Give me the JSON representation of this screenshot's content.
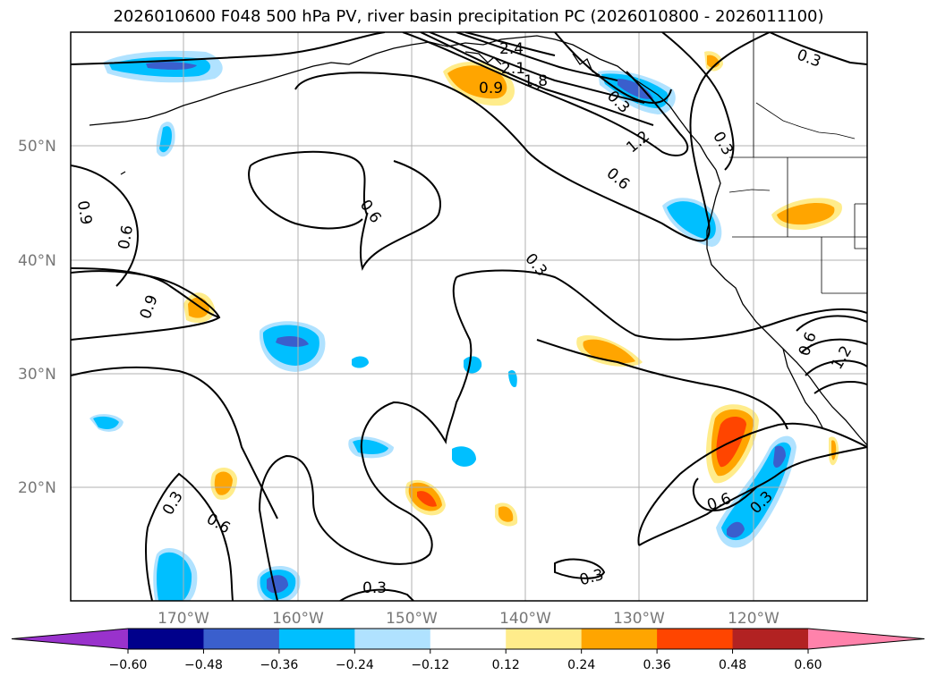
{
  "title": "2026010600 F048 500 hPa PV, river basin precipitation PC (2026010800 - 2026011100)",
  "lat_labels": [
    "50°N",
    "40°N",
    "30°N",
    "20°N"
  ],
  "lon_labels": [
    "170°W",
    "160°W",
    "150°W",
    "140°W",
    "130°W",
    "120°W"
  ],
  "contour_labels": [
    "2.4",
    "2.1",
    "1.8",
    "0.9",
    "1.2",
    "0.6",
    "0.3",
    "0.6",
    "0.9",
    "0.6",
    "0.9",
    "0.3",
    "0.3",
    "0.6",
    "0.3",
    "0.3",
    "0.3",
    "0.6",
    "0.3",
    "0.3",
    "0.6",
    "1.2"
  ],
  "colorbar": {
    "ticks": [
      "−0.60",
      "−0.48",
      "−0.36",
      "−0.24",
      "−0.12",
      "0.12",
      "0.24",
      "0.36",
      "0.48",
      "0.60"
    ],
    "colors": [
      "#9932cc",
      "#00008b",
      "#3a5fcd",
      "#00bfff",
      "#b0e2ff",
      "#ffffff",
      "#ffec8b",
      "#ffa500",
      "#ff4500",
      "#b22222",
      "#ff82ab"
    ]
  }
}
